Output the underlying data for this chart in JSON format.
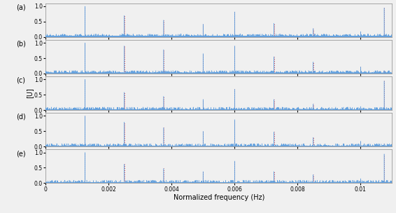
{
  "n_subplots": 5,
  "labels": [
    "(a)",
    "(b)",
    "(c)",
    "(d)",
    "(e)"
  ],
  "xlim": [
    0,
    0.011
  ],
  "ylim": [
    0,
    1.1
  ],
  "yticks": [
    0,
    0.5,
    1
  ],
  "xticks": [
    0,
    0.002,
    0.004,
    0.006,
    0.008,
    0.01
  ],
  "xlabel": "Normalized frequency (Hz)",
  "ylabel": "[U]",
  "noise_level": 0.04,
  "background_color": "#f0f0f0",
  "blue_color": "#5599dd",
  "cyan_color": "#66cccc",
  "red_color": "#ee3333",
  "panel_peaks": {
    "a": [
      {
        "freq": 0.00125,
        "amp": 1.0
      },
      {
        "freq": 0.0025,
        "amp": 0.7
      },
      {
        "freq": 0.00375,
        "amp": 0.55
      },
      {
        "freq": 0.005,
        "amp": 0.42
      },
      {
        "freq": 0.006,
        "amp": 0.82
      },
      {
        "freq": 0.00725,
        "amp": 0.45
      },
      {
        "freq": 0.0085,
        "amp": 0.28
      },
      {
        "freq": 0.01,
        "amp": 0.18
      },
      {
        "freq": 0.01075,
        "amp": 0.95
      }
    ],
    "b": [
      {
        "freq": 0.00125,
        "amp": 1.0
      },
      {
        "freq": 0.0025,
        "amp": 0.9
      },
      {
        "freq": 0.00375,
        "amp": 0.78
      },
      {
        "freq": 0.005,
        "amp": 0.65
      },
      {
        "freq": 0.006,
        "amp": 0.9
      },
      {
        "freq": 0.00725,
        "amp": 0.55
      },
      {
        "freq": 0.0085,
        "amp": 0.38
      },
      {
        "freq": 0.01,
        "amp": 0.22
      },
      {
        "freq": 0.01075,
        "amp": 0.1
      }
    ],
    "c": [
      {
        "freq": 0.00125,
        "amp": 1.0
      },
      {
        "freq": 0.0025,
        "amp": 0.58
      },
      {
        "freq": 0.00375,
        "amp": 0.45
      },
      {
        "freq": 0.005,
        "amp": 0.35
      },
      {
        "freq": 0.006,
        "amp": 0.68
      },
      {
        "freq": 0.00725,
        "amp": 0.35
      },
      {
        "freq": 0.0085,
        "amp": 0.2
      },
      {
        "freq": 0.01,
        "amp": 0.12
      },
      {
        "freq": 0.01075,
        "amp": 0.95
      }
    ],
    "d": [
      {
        "freq": 0.00125,
        "amp": 1.0
      },
      {
        "freq": 0.0025,
        "amp": 0.8
      },
      {
        "freq": 0.00375,
        "amp": 0.62
      },
      {
        "freq": 0.005,
        "amp": 0.5
      },
      {
        "freq": 0.006,
        "amp": 0.88
      },
      {
        "freq": 0.00725,
        "amp": 0.48
      },
      {
        "freq": 0.0085,
        "amp": 0.3
      },
      {
        "freq": 0.01,
        "amp": 0.18
      },
      {
        "freq": 0.01075,
        "amp": 0.1
      }
    ],
    "e": [
      {
        "freq": 0.00125,
        "amp": 1.0
      },
      {
        "freq": 0.0025,
        "amp": 0.62
      },
      {
        "freq": 0.00375,
        "amp": 0.48
      },
      {
        "freq": 0.005,
        "amp": 0.38
      },
      {
        "freq": 0.006,
        "amp": 0.72
      },
      {
        "freq": 0.00725,
        "amp": 0.38
      },
      {
        "freq": 0.0085,
        "amp": 0.28
      },
      {
        "freq": 0.01,
        "amp": 0.15
      },
      {
        "freq": 0.01075,
        "amp": 0.95
      }
    ]
  },
  "theo_peaks": [
    0.00125,
    0.0025,
    0.00375,
    0.005,
    0.006,
    0.00725,
    0.0085,
    0.01,
    0.01075
  ]
}
